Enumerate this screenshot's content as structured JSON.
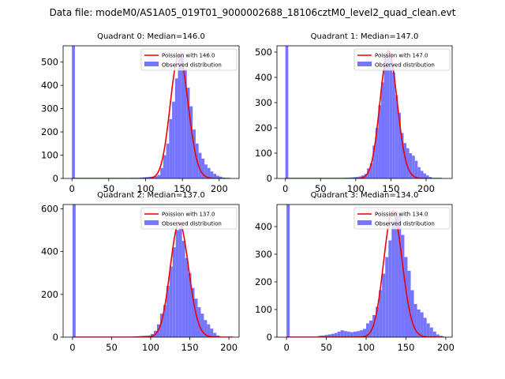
{
  "suptitle": "Data file: modeM0/AS1A05_019T01_9000002688_18106cztM0_level2_quad_clean.evt",
  "chart_data": [
    {
      "type": "bar",
      "title": "Quadrant 0: Median=146.0",
      "xlim": [
        -12,
        227
      ],
      "ylim": [
        0,
        570
      ],
      "xticks": [
        0,
        50,
        100,
        150,
        200
      ],
      "yticks": [
        0,
        100,
        200,
        300,
        400,
        500
      ],
      "bin_width": 4,
      "bins": [
        [
          0,
          569
        ],
        [
          80,
          3
        ],
        [
          84,
          2
        ],
        [
          88,
          3
        ],
        [
          92,
          4
        ],
        [
          96,
          5
        ],
        [
          100,
          6
        ],
        [
          104,
          7
        ],
        [
          108,
          8
        ],
        [
          112,
          10
        ],
        [
          116,
          15
        ],
        [
          120,
          45
        ],
        [
          124,
          100
        ],
        [
          128,
          150
        ],
        [
          132,
          255
        ],
        [
          136,
          330
        ],
        [
          140,
          430
        ],
        [
          144,
          520
        ],
        [
          148,
          540
        ],
        [
          152,
          470
        ],
        [
          156,
          390
        ],
        [
          160,
          310
        ],
        [
          164,
          210
        ],
        [
          168,
          150
        ],
        [
          172,
          110
        ],
        [
          176,
          85
        ],
        [
          180,
          60
        ],
        [
          184,
          45
        ],
        [
          188,
          30
        ],
        [
          192,
          20
        ],
        [
          196,
          12
        ],
        [
          200,
          8
        ],
        [
          204,
          4
        ]
      ],
      "poisson": {
        "label": "Poission with 146.0",
        "mean": 146.0,
        "peak": 530,
        "x_range": [
          0,
          215
        ]
      },
      "legend": {
        "poisson_label": "Poission with 146.0",
        "hist_label": "Observed distribution",
        "position": "top-right"
      }
    },
    {
      "type": "bar",
      "title": "Quadrant 1: Median=147.0",
      "xlim": [
        -12,
        237
      ],
      "ylim": [
        0,
        525
      ],
      "xticks": [
        0,
        50,
        100,
        150,
        200
      ],
      "yticks": [
        0,
        100,
        200,
        300,
        400,
        500
      ],
      "bin_width": 4,
      "bins": [
        [
          0,
          525
        ],
        [
          84,
          3
        ],
        [
          88,
          3
        ],
        [
          92,
          4
        ],
        [
          96,
          5
        ],
        [
          100,
          6
        ],
        [
          104,
          8
        ],
        [
          108,
          12
        ],
        [
          112,
          18
        ],
        [
          116,
          40
        ],
        [
          120,
          60
        ],
        [
          124,
          130
        ],
        [
          128,
          200
        ],
        [
          132,
          290
        ],
        [
          136,
          380
        ],
        [
          140,
          470
        ],
        [
          144,
          490
        ],
        [
          148,
          500
        ],
        [
          152,
          420
        ],
        [
          156,
          330
        ],
        [
          160,
          260
        ],
        [
          164,
          180
        ],
        [
          168,
          140
        ],
        [
          172,
          120
        ],
        [
          176,
          100
        ],
        [
          180,
          90
        ],
        [
          184,
          70
        ],
        [
          188,
          45
        ],
        [
          192,
          30
        ],
        [
          196,
          20
        ],
        [
          200,
          12
        ],
        [
          204,
          6
        ]
      ],
      "poisson": {
        "label": "Poission with 147.0",
        "mean": 147.0,
        "peak": 505,
        "x_range": [
          0,
          222
        ]
      },
      "legend": {
        "poisson_label": "Poission with 147.0",
        "hist_label": "Observed distribution",
        "position": "top-right"
      }
    },
    {
      "type": "bar",
      "title": "Quadrant 2: Median=137.0",
      "xlim": [
        -12,
        213
      ],
      "ylim": [
        0,
        620
      ],
      "xticks": [
        0,
        50,
        100,
        150,
        200
      ],
      "yticks": [
        0,
        200,
        400,
        600
      ],
      "bin_width": 4,
      "bins": [
        [
          0,
          620
        ],
        [
          76,
          3
        ],
        [
          80,
          4
        ],
        [
          84,
          5
        ],
        [
          88,
          6
        ],
        [
          92,
          7
        ],
        [
          96,
          8
        ],
        [
          100,
          15
        ],
        [
          104,
          30
        ],
        [
          108,
          60
        ],
        [
          112,
          110
        ],
        [
          116,
          150
        ],
        [
          120,
          240
        ],
        [
          124,
          330
        ],
        [
          128,
          420
        ],
        [
          132,
          500
        ],
        [
          136,
          510
        ],
        [
          140,
          450
        ],
        [
          144,
          370
        ],
        [
          148,
          300
        ],
        [
          152,
          230
        ],
        [
          156,
          180
        ],
        [
          160,
          140
        ],
        [
          164,
          110
        ],
        [
          168,
          80
        ],
        [
          172,
          60
        ],
        [
          176,
          40
        ],
        [
          180,
          20
        ],
        [
          184,
          8
        ]
      ],
      "poisson": {
        "label": "Poission with 137.0",
        "mean": 137.0,
        "peak": 535,
        "x_range": [
          0,
          205
        ]
      },
      "legend": {
        "poisson_label": "Poission with 137.0",
        "hist_label": "Observed distribution",
        "position": "top-right"
      }
    },
    {
      "type": "bar",
      "title": "Quadrant 3: Median=134.0",
      "xlim": [
        -12,
        208
      ],
      "ylim": [
        0,
        480
      ],
      "xticks": [
        0,
        50,
        100,
        150,
        200
      ],
      "yticks": [
        0,
        100,
        200,
        300,
        400
      ],
      "bin_width": 4,
      "bins": [
        [
          0,
          480
        ],
        [
          40,
          5
        ],
        [
          44,
          6
        ],
        [
          48,
          8
        ],
        [
          52,
          10
        ],
        [
          56,
          12
        ],
        [
          60,
          15
        ],
        [
          64,
          20
        ],
        [
          68,
          25
        ],
        [
          72,
          22
        ],
        [
          76,
          20
        ],
        [
          80,
          18
        ],
        [
          84,
          20
        ],
        [
          88,
          22
        ],
        [
          92,
          25
        ],
        [
          96,
          30
        ],
        [
          100,
          50
        ],
        [
          104,
          60
        ],
        [
          108,
          80
        ],
        [
          112,
          110
        ],
        [
          116,
          170
        ],
        [
          120,
          230
        ],
        [
          124,
          290
        ],
        [
          128,
          350
        ],
        [
          132,
          420
        ],
        [
          136,
          455
        ],
        [
          140,
          440
        ],
        [
          144,
          370
        ],
        [
          148,
          290
        ],
        [
          152,
          240
        ],
        [
          156,
          170
        ],
        [
          160,
          120
        ],
        [
          164,
          100
        ],
        [
          168,
          90
        ],
        [
          172,
          70
        ],
        [
          176,
          50
        ],
        [
          180,
          35
        ],
        [
          184,
          20
        ],
        [
          188,
          10
        ],
        [
          192,
          5
        ]
      ],
      "poisson": {
        "label": "Poission with 134.0",
        "mean": 134.0,
        "peak": 455,
        "x_range": [
          0,
          198
        ]
      },
      "legend": {
        "poisson_label": "Poission with 134.0",
        "hist_label": "Observed distribution",
        "position": "top-right"
      }
    }
  ],
  "colors": {
    "hist": "#7575ff",
    "poisson": "#ee0000",
    "axis": "#000000"
  }
}
